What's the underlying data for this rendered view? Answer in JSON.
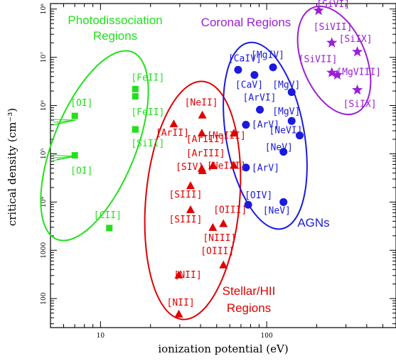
{
  "chart_data": {
    "type": "scatter",
    "xlabel": "ionization potential (eV)",
    "ylabel": "critical density (cm⁻³)",
    "xscale": "log",
    "yscale": "log",
    "xlim": [
      5,
      600
    ],
    "ylim": [
      25,
      130000000
    ],
    "grid": false,
    "x_tick_labels": [
      "10",
      "100"
    ],
    "y_tick_labels": [
      "100",
      "1000",
      "10⁴",
      "10⁵",
      "10⁶",
      "10⁷",
      "10⁸"
    ],
    "colors": {
      "pdr": "#22e01c",
      "hii": "#e00000",
      "agn": "#1a1ae0",
      "coronal": "#9b1fd6"
    },
    "series": [
      {
        "name": "Photodissociation Regions",
        "marker": "square",
        "color": "#22e01c",
        "points": [
          {
            "label": "[OI]",
            "x": 7.0,
            "y": 610000,
            "labeled": true
          },
          {
            "label": "[OI]",
            "x": 7.0,
            "y": 93000,
            "labeled": true
          },
          {
            "label": "[FeII]",
            "x": 16.2,
            "y": 2200000,
            "labeled": true
          },
          {
            "label": "",
            "x": 16.2,
            "y": 1550000,
            "labeled": false
          },
          {
            "label": "[FeII]",
            "x": 16.2,
            "y": 320000,
            "labeled": true
          },
          {
            "label": "[SiII]",
            "x": 16.2,
            "y": 320000,
            "labeled": true
          },
          {
            "label": "[CII]",
            "x": 11.3,
            "y": 2900,
            "labeled": true
          }
        ]
      },
      {
        "name": "Stellar/HII Regions",
        "marker": "triangle",
        "color": "#e00000",
        "points": [
          {
            "label": "[ArII]",
            "x": 27.6,
            "y": 420000,
            "labeled": true
          },
          {
            "label": "[NeII]",
            "x": 41.0,
            "y": 640000,
            "labeled": true
          },
          {
            "label": "[NeIII]",
            "x": 63.5,
            "y": 270000,
            "labeled": true
          },
          {
            "label": "[ArIII]",
            "x": 40.7,
            "y": 270000,
            "labeled": true
          },
          {
            "label": "[ArIII]",
            "x": 40.7,
            "y": 50000,
            "labeled": true
          },
          {
            "label": "[SIV]",
            "x": 47.3,
            "y": 57000,
            "labeled": true
          },
          {
            "label": "",
            "x": 41.0,
            "y": 45000,
            "labeled": false
          },
          {
            "label": "[NeIII]",
            "x": 63.5,
            "y": 58000,
            "labeled": true
          },
          {
            "label": "[SIII]",
            "x": 34.8,
            "y": 22000,
            "labeled": true
          },
          {
            "label": "[SIII]",
            "x": 34.8,
            "y": 7000,
            "labeled": true
          },
          {
            "label": "[NIII]",
            "x": 47.4,
            "y": 3000,
            "labeled": true
          },
          {
            "label": "[OIII]",
            "x": 54.9,
            "y": 3600,
            "labeled": true
          },
          {
            "label": "[OIII]",
            "x": 54.9,
            "y": 500,
            "labeled": true
          },
          {
            "label": "[NII]",
            "x": 29.6,
            "y": 310,
            "labeled": true
          },
          {
            "label": "[NII]",
            "x": 29.6,
            "y": 48,
            "labeled": true
          }
        ]
      },
      {
        "name": "AGNs",
        "marker": "circle",
        "color": "#1a1ae0",
        "points": [
          {
            "label": "[CaIV]",
            "x": 67.3,
            "y": 5500000,
            "labeled": true
          },
          {
            "label": "[MgIV]",
            "x": 109.2,
            "y": 6200000,
            "labeled": true
          },
          {
            "label": "[CaV]",
            "x": 84.4,
            "y": 4300000,
            "labeled": true
          },
          {
            "label": "[MgV]",
            "x": 141.3,
            "y": 1900000,
            "labeled": true
          },
          {
            "label": "[ArVI]",
            "x": 91.0,
            "y": 820000,
            "labeled": true
          },
          {
            "label": "[MgV]",
            "x": 141.3,
            "y": 480000,
            "labeled": true
          },
          {
            "label": "[ArV]",
            "x": 75.0,
            "y": 400000,
            "labeled": true
          },
          {
            "label": "[NeVI]",
            "x": 157.9,
            "y": 240000,
            "labeled": true
          },
          {
            "label": "[NeV]",
            "x": 126.2,
            "y": 110000,
            "labeled": true
          },
          {
            "label": "[ArV]",
            "x": 75.0,
            "y": 52000,
            "labeled": true
          },
          {
            "label": "[OIV]",
            "x": 77.4,
            "y": 8800,
            "labeled": true
          },
          {
            "label": "[NeV]",
            "x": 126.2,
            "y": 10000,
            "labeled": true
          }
        ]
      },
      {
        "name": "Coronal Regions",
        "marker": "star",
        "color": "#9b1fd6",
        "points": [
          {
            "label": "[SiVI]",
            "x": 205.3,
            "y": 93000000,
            "labeled": true
          },
          {
            "label": "[SiVII]",
            "x": 246.5,
            "y": 20000000,
            "labeled": true
          },
          {
            "label": "[SiIX]",
            "x": 351.1,
            "y": 13000000,
            "labeled": true
          },
          {
            "label": "[SiVII]",
            "x": 246.5,
            "y": 4800000,
            "labeled": true
          },
          {
            "label": "[MgVIII]",
            "x": 265.9,
            "y": 4300000,
            "labeled": true
          },
          {
            "label": "[SiIX]",
            "x": 351.1,
            "y": 2100000,
            "labeled": true
          }
        ]
      }
    ],
    "region_labels": [
      {
        "lines": [
          "Photodissociation",
          "Regions"
        ],
        "color": "#22e01c"
      },
      {
        "lines": [
          "Coronal Regions"
        ],
        "color": "#9b1fd6"
      },
      {
        "lines": [
          "AGNs"
        ],
        "color": "#1a1ae0"
      },
      {
        "lines": [
          "Stellar/HII",
          "Regions"
        ],
        "color": "#e00000"
      }
    ]
  }
}
